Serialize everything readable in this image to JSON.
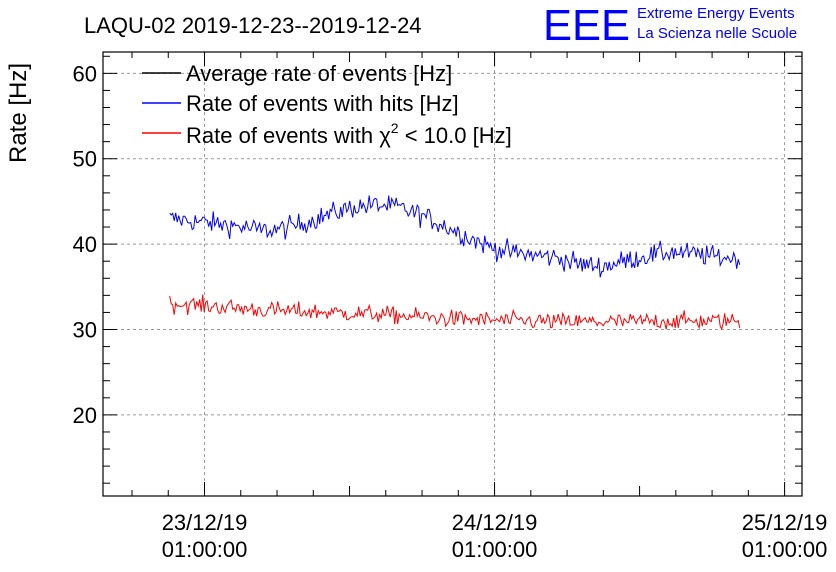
{
  "chart_data": {
    "type": "line",
    "title": "LAQU-02 2019-12-23--2019-12-24",
    "ylabel": "Rate [Hz]",
    "xlabel": "",
    "ylim": [
      10.5,
      62.5
    ],
    "y_ticks": [
      20,
      30,
      40,
      50,
      60
    ],
    "x_range_days": [
      -0.35,
      2.06
    ],
    "x_ticks": [
      {
        "day": 0,
        "line1": "23/12/19",
        "line2": "01:00:00"
      },
      {
        "day": 1,
        "line1": "24/12/19",
        "line2": "01:00:00"
      },
      {
        "day": 2,
        "line1": "25/12/19",
        "line2": "01:00:00"
      }
    ],
    "grid": true,
    "legend_position": "top-left",
    "series": [
      {
        "name": "Average rate of events [Hz]",
        "color": "#000000",
        "values": []
      },
      {
        "name": "Rate of events with hits [Hz]",
        "color": "#0000ff",
        "x_start_day": -0.12,
        "x_end_day": 1.85,
        "noise": 1.6,
        "values": [
          43.0,
          42.7,
          42.4,
          42.1,
          41.6,
          41.8,
          42.6,
          43.5,
          44.3,
          44.6,
          44.3,
          43.4,
          42.2,
          40.9,
          39.7,
          39.0,
          38.7,
          38.4,
          37.6,
          37.4,
          38.1,
          38.7,
          39.1,
          38.8,
          38.5,
          38.3
        ]
      },
      {
        "name": "Rate of events with χ² < 10.0 [Hz]",
        "name_parts": {
          "before": "Rate of events with ",
          "chi": "χ",
          "sup": "2",
          "after": " < 10.0 [Hz]"
        },
        "color": "#ff0000",
        "x_start_day": -0.12,
        "x_end_day": 1.85,
        "noise": 1.3,
        "values": [
          33.0,
          32.9,
          32.7,
          32.5,
          32.3,
          32.2,
          32.1,
          32.0,
          31.9,
          31.8,
          31.6,
          31.5,
          31.3,
          31.2,
          31.1,
          31.0,
          31.0,
          30.9,
          30.9,
          30.9,
          30.9,
          31.0,
          31.0,
          31.0,
          31.0,
          31.0
        ]
      }
    ]
  },
  "logo": {
    "letters": "EEE",
    "line1": "Extreme Energy Events",
    "line2": "La Scienza nelle Scuole",
    "color": "#0000ff"
  }
}
